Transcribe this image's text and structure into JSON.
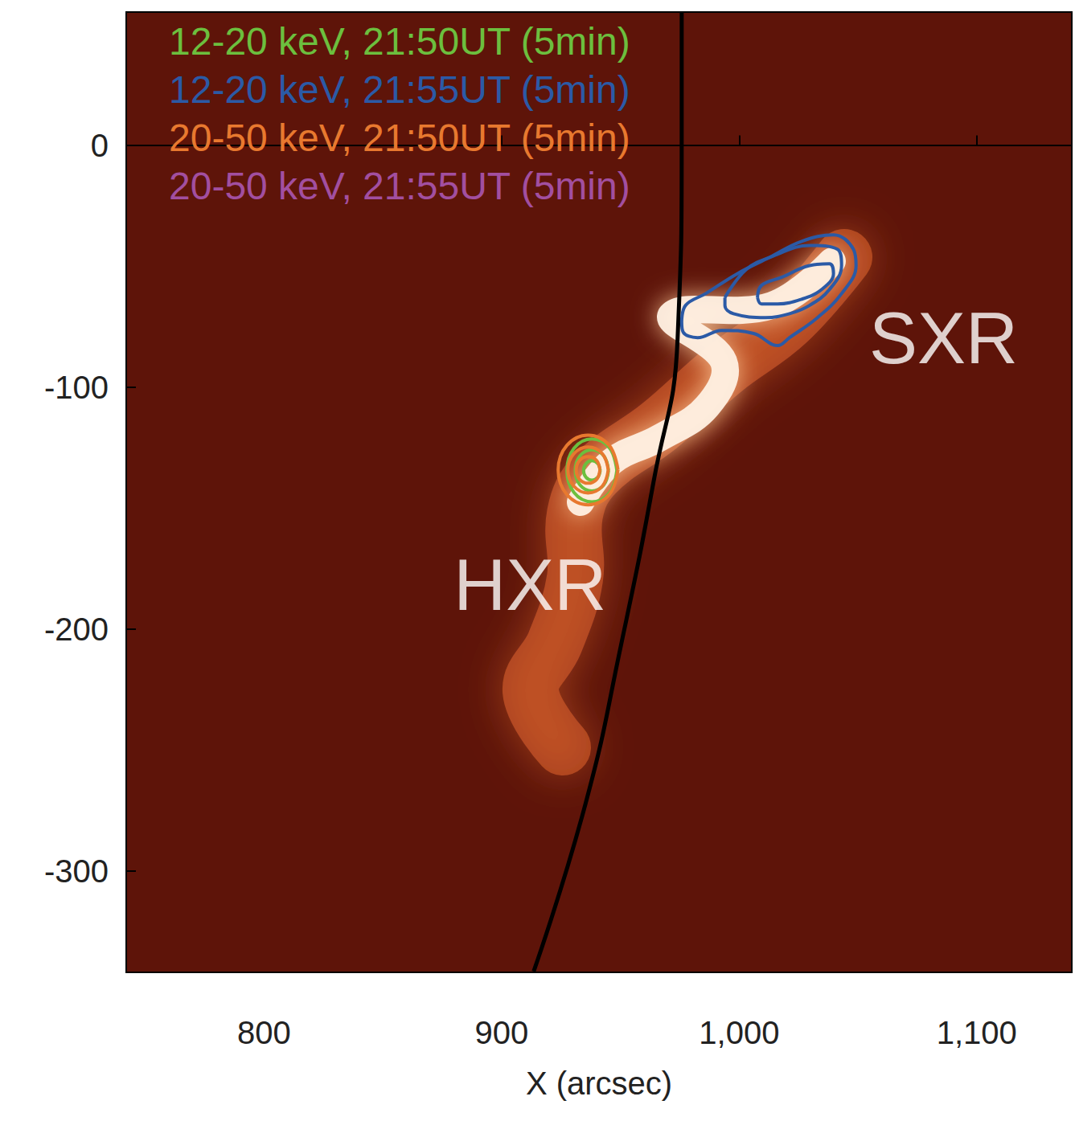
{
  "chart_data": {
    "type": "contour",
    "xlabel": "X (arcsec)",
    "xlim": [
      742,
      1140
    ],
    "xticks": [
      800,
      900,
      1000,
      1100
    ],
    "ylim": [
      -342,
      55
    ],
    "yticks": [
      -300,
      -200,
      -100,
      0
    ],
    "legend": "upper left",
    "series": [
      {
        "name": "12-20 keV, 21:50UT (5min)",
        "color": "#6cbf3e",
        "contours": [
          [
            [
              948.5,
              -134.5
            ],
            [
              945.5,
              -125.3
            ],
            [
              938,
              -121.5
            ],
            [
              930.5,
              -125.3
            ],
            [
              927.5,
              -134.5
            ],
            [
              930.5,
              -143.7
            ],
            [
              938,
              -147.5
            ],
            [
              945.5,
              -143.7
            ]
          ],
          [
            [
              945,
              -134.5
            ],
            [
              943,
              -128.5
            ],
            [
              938,
              -126
            ],
            [
              933,
              -128.5
            ],
            [
              931,
              -134.5
            ],
            [
              933,
              -140.5
            ],
            [
              938,
              -143
            ],
            [
              943,
              -140.5
            ]
          ],
          [
            [
              941.5,
              -134.5
            ],
            [
              940.5,
              -131.7
            ],
            [
              938,
              -130.5
            ],
            [
              935.5,
              -131.7
            ],
            [
              934.5,
              -134.5
            ],
            [
              935.5,
              -137.3
            ],
            [
              938,
              -138.5
            ],
            [
              940.5,
              -137.3
            ]
          ]
        ]
      },
      {
        "name": "12-20 keV, 21:55UT (5min)",
        "color": "#2b5aa6",
        "contours": [
          [
            [
              975.8,
              -73
            ],
            [
              977.4,
              -66.3
            ],
            [
              985.9,
              -61.4
            ],
            [
              999.3,
              -53.1
            ],
            [
              1012.8,
              -46.4
            ],
            [
              1026.3,
              -39.8
            ],
            [
              1039.7,
              -37.1
            ],
            [
              1048.1,
              -43.1
            ],
            [
              1049.2,
              -49.8
            ],
            [
              1043.1,
              -61.4
            ],
            [
              1033,
              -71.3
            ],
            [
              1021.2,
              -79.6
            ],
            [
              1016.2,
              -82.9
            ],
            [
              1006.1,
              -77.9
            ],
            [
              992.6,
              -76.6
            ],
            [
              982.5,
              -79.6
            ],
            [
              976.4,
              -77.3
            ]
          ],
          [
            [
              994,
              -63
            ],
            [
              1003,
              -51.4
            ],
            [
              1014.5,
              -45.8
            ],
            [
              1029.6,
              -41.5
            ],
            [
              1041.4,
              -43.1
            ],
            [
              1043.1,
              -49.8
            ],
            [
              1038,
              -59.7
            ],
            [
              1029.6,
              -66.3
            ],
            [
              1021.2,
              -69.7
            ],
            [
              1011.1,
              -71.3
            ],
            [
              997.6,
              -69.7
            ],
            [
              994,
              -66.3
            ]
          ],
          [
            [
              1007.7,
              -63
            ],
            [
              1009.4,
              -58
            ],
            [
              1017.8,
              -54.7
            ],
            [
              1029.6,
              -49.8
            ],
            [
              1038,
              -49.1
            ],
            [
              1039.7,
              -53.1
            ],
            [
              1034.7,
              -59.7
            ],
            [
              1026.3,
              -63.7
            ],
            [
              1016.2,
              -65.7
            ],
            [
              1009.4,
              -65.7
            ]
          ]
        ]
      },
      {
        "name": "20-50 keV, 21:50UT (5min)",
        "color": "#e8792f",
        "contours": [
          [
            [
              949,
              -134.3
            ],
            [
              945.3,
              -124.1
            ],
            [
              936.4,
              -119.9
            ],
            [
              927.5,
              -124.1
            ],
            [
              923.8,
              -134.3
            ],
            [
              927.5,
              -144.5
            ],
            [
              936.4,
              -148.7
            ],
            [
              945.3,
              -144.5
            ]
          ],
          [
            [
              944.9,
              -134.3
            ],
            [
              942.4,
              -127.6
            ],
            [
              936.4,
              -124.8
            ],
            [
              930.4,
              -127.6
            ],
            [
              927.9,
              -134.3
            ],
            [
              930.4,
              -141
            ],
            [
              936.4,
              -143.8
            ],
            [
              942.4,
              -141
            ]
          ],
          [
            [
              941.4,
              -134.3
            ],
            [
              940,
              -130.4
            ],
            [
              936.4,
              -128.8
            ],
            [
              932.8,
              -130.4
            ],
            [
              931.4,
              -134.3
            ],
            [
              932.8,
              -138.2
            ],
            [
              936.4,
              -139.8
            ],
            [
              940,
              -138.2
            ]
          ]
        ]
      },
      {
        "name": "20-50 keV, 21:55UT (5min)",
        "color": "#a24fa0",
        "contours": []
      }
    ],
    "limb": {
      "color": "#000000",
      "x": [
        975.8,
        975.8,
        974.1,
        964,
        950.5,
        935.4,
        913.5
      ],
      "y": [
        55,
        0,
        -79.6,
        -139,
        -205.6,
        -272,
        -341.6
      ]
    },
    "annotations": [
      {
        "text": "SXR",
        "x": 1086,
        "y": -80
      },
      {
        "text": "HXR",
        "x": 912,
        "y": -182
      }
    ]
  }
}
